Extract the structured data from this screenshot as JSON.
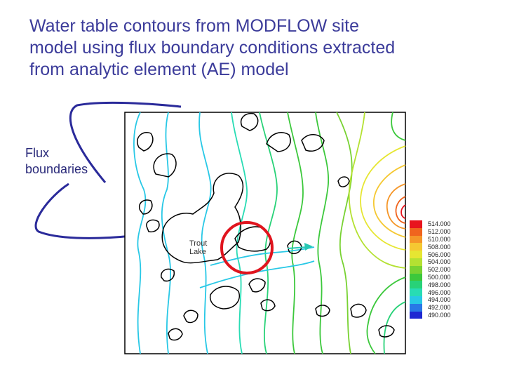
{
  "slide": {
    "title_lines": [
      "Water table contours from MODFLOW site",
      "model using flux boundary conditions extracted",
      "from analytic element (AE) model"
    ],
    "flux_label_lines": [
      "Flux",
      "boundaries"
    ]
  },
  "map": {
    "lake_label_lines": [
      "Trout",
      "Lake"
    ],
    "highlight_color": "#e0141e"
  },
  "legend": {
    "entries": [
      {
        "value": "514.000",
        "color": "#e8141e"
      },
      {
        "value": "512.000",
        "color": "#f0641e"
      },
      {
        "value": "510.000",
        "color": "#f59628"
      },
      {
        "value": "508.000",
        "color": "#f5c832"
      },
      {
        "value": "506.000",
        "color": "#e6e632"
      },
      {
        "value": "504.000",
        "color": "#b4e132"
      },
      {
        "value": "502.000",
        "color": "#78d232"
      },
      {
        "value": "500.000",
        "color": "#3cc83c"
      },
      {
        "value": "498.000",
        "color": "#28d278"
      },
      {
        "value": "496.000",
        "color": "#28dcb4"
      },
      {
        "value": "494.000",
        "color": "#28c8e6"
      },
      {
        "value": "492.000",
        "color": "#2878e6"
      },
      {
        "value": "490.000",
        "color": "#1e28d2"
      }
    ]
  }
}
